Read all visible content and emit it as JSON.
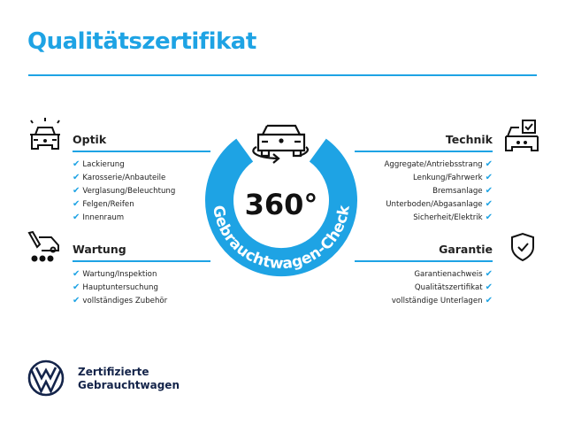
{
  "title": "Qualitätszertifikat",
  "check_glyph": "✔",
  "colors": {
    "accent": "#1ea3e4",
    "brand": "#14244a"
  },
  "badge": {
    "big": "360°",
    "ring_text": "Gebrauchtwagen-Check",
    "icon": "car-rotate-icon"
  },
  "sections": {
    "optik": {
      "heading": "Optik",
      "icon": "car-lights-icon",
      "items": [
        "Lackierung",
        "Karosserie/Anbauteile",
        "Verglasung/Beleuchtung",
        "Felgen/Reifen",
        "Innenraum"
      ]
    },
    "wartung": {
      "heading": "Wartung",
      "icon": "tools-cart-icon",
      "items": [
        "Wartung/Inspektion",
        "Hauptuntersuchung",
        "vollständiges Zubehör"
      ]
    },
    "technik": {
      "heading": "Technik",
      "icon": "car-checkbox-icon",
      "items": [
        "Aggregate/Antriebsstrang",
        "Lenkung/Fahrwerk",
        "Bremsanlage",
        "Unterboden/Abgasanlage",
        "Sicherheit/Elektrik"
      ]
    },
    "garantie": {
      "heading": "Garantie",
      "icon": "shield-check-icon",
      "items": [
        "Garantienachweis",
        "Qualitätszertifikat",
        "vollständige Unterlagen"
      ]
    }
  },
  "footer": {
    "line1": "Zertifizierte",
    "line2": "Gebrauchtwagen",
    "logo": "vw-logo"
  }
}
